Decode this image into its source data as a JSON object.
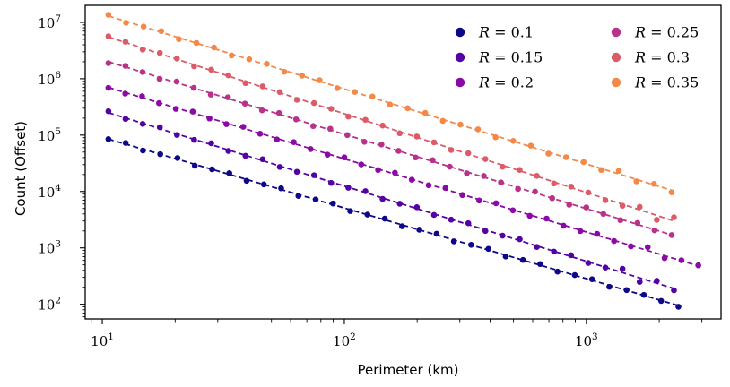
{
  "chart_data": {
    "type": "scatter",
    "xlabel": "Perimeter (km)",
    "ylabel": "Count (Offset)",
    "xscale": "log",
    "yscale": "log",
    "xlim": [
      8.5,
      3600
    ],
    "ylim": [
      55,
      20000000
    ],
    "xticks": [
      {
        "base": "10",
        "exp": "1",
        "value": 10
      },
      {
        "base": "10",
        "exp": "2",
        "value": 100
      },
      {
        "base": "10",
        "exp": "3",
        "value": 1000
      }
    ],
    "yticks": [
      {
        "base": "10",
        "exp": "2",
        "value": 100
      },
      {
        "base": "10",
        "exp": "3",
        "value": 1000
      },
      {
        "base": "10",
        "exp": "4",
        "value": 10000
      },
      {
        "base": "10",
        "exp": "5",
        "value": 100000
      },
      {
        "base": "10",
        "exp": "6",
        "value": 1000000
      },
      {
        "base": "10",
        "exp": "7",
        "value": 10000000
      }
    ],
    "grid": false,
    "legend_position": "top-right",
    "fit_line_style": "dashed",
    "series": [
      {
        "name": "R = 0.1",
        "color": "#0d0887",
        "x_start": 10.6,
        "x_end": 2400,
        "count_at_start": 85000,
        "count_at_end": 95,
        "points": 34
      },
      {
        "name": "R = 0.15",
        "color": "#5302a3",
        "x_start": 10.6,
        "x_end": 2300,
        "count_at_start": 250000,
        "count_at_end": 190,
        "points": 34
      },
      {
        "name": "R = 0.2",
        "color": "#8b0aa5",
        "x_start": 10.6,
        "x_end": 2900,
        "count_at_start": 700000,
        "count_at_end": 480,
        "points": 36
      },
      {
        "name": "R = 0.25",
        "color": "#b83289",
        "x_start": 10.6,
        "x_end": 2250,
        "count_at_start": 2000000,
        "count_at_end": 1700,
        "points": 34
      },
      {
        "name": "R = 0.3",
        "color": "#db5c68",
        "x_start": 10.6,
        "x_end": 2300,
        "count_at_start": 5500000,
        "count_at_end": 3000,
        "points": 34
      },
      {
        "name": "R = 0.35",
        "color": "#f48849",
        "x_start": 10.6,
        "x_end": 2250,
        "count_at_start": 13000000,
        "count_at_end": 10500,
        "points": 33
      }
    ]
  }
}
